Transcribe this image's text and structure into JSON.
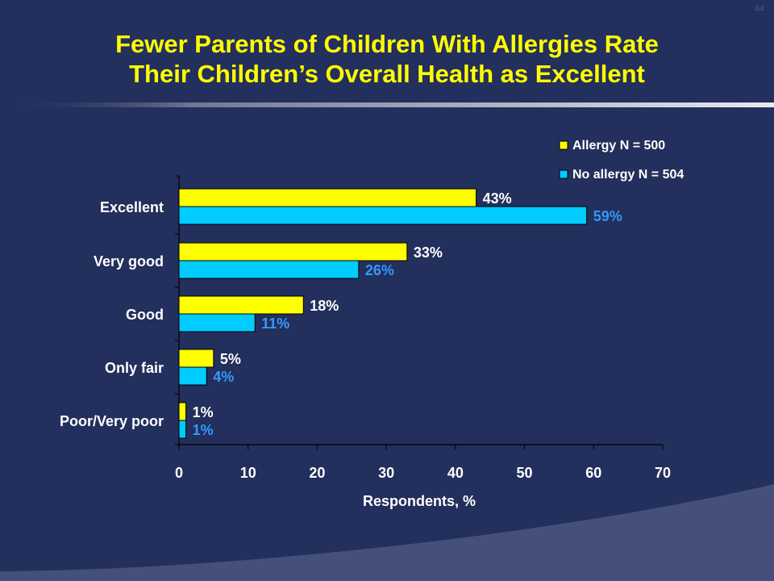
{
  "slide": {
    "page_number": "44",
    "title_line1": "Fewer Parents of Children With Allergies Rate",
    "title_line2": "Their Children’s Overall Health as Excellent"
  },
  "colors": {
    "background": "#232f5c",
    "title": "#ffff00",
    "allergy": "#ffff00",
    "no_allergy": "#00ccff",
    "no_allergy_label": "#3399ff",
    "allergy_label": "#ffffff"
  },
  "chart_data": {
    "type": "bar",
    "orientation": "horizontal",
    "categories": [
      "Excellent",
      "Very good",
      "Good",
      "Only fair",
      "Poor/Very poor"
    ],
    "series": [
      {
        "name": "Allergy N = 500",
        "values": [
          43,
          33,
          18,
          5,
          1
        ],
        "labels": [
          "43%",
          "33%",
          "18%",
          "5%",
          "1%"
        ]
      },
      {
        "name": "No allergy N = 504",
        "values": [
          59,
          26,
          11,
          4,
          1
        ],
        "labels": [
          "59%",
          "26%",
          "11%",
          "4%",
          "1%"
        ]
      }
    ],
    "xlabel": "Respondents, %",
    "xlim": [
      0,
      70
    ],
    "xticks": [
      "0",
      "10",
      "20",
      "30",
      "40",
      "50",
      "60",
      "70"
    ],
    "grid": false,
    "legend_position": "top-right"
  }
}
